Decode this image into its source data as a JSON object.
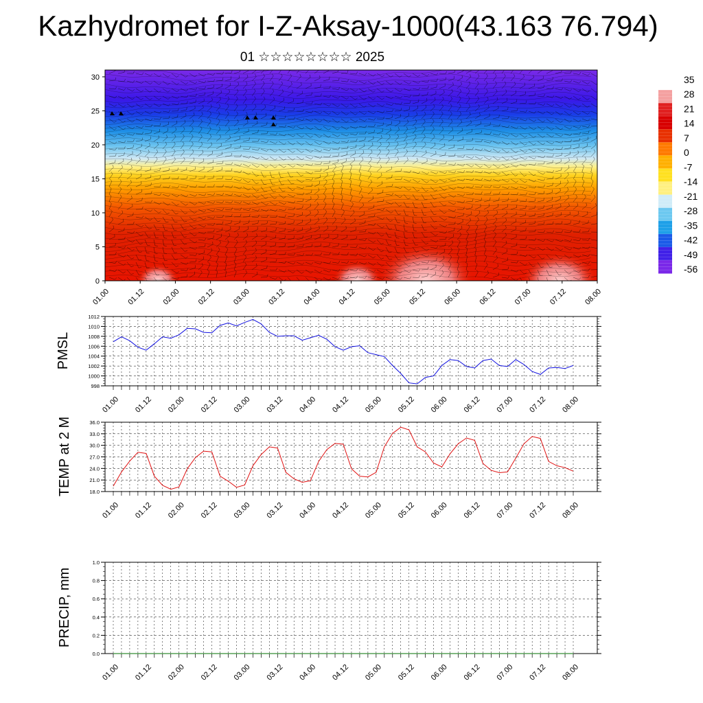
{
  "header": {
    "title": "Kazhydromet for I-Z-Aksay-1000(43.163 76.794)",
    "subtitle": "01 ☆☆☆☆☆☆☆☆ 2025"
  },
  "time_ticks": [
    "01.00",
    "01.12",
    "02.00",
    "02.12",
    "03.00",
    "03.12",
    "04.00",
    "04.12",
    "05.00",
    "05.12",
    "06.00",
    "06.12",
    "07.00",
    "07.12",
    "08.00"
  ],
  "chart_data": [
    {
      "type": "heatmap",
      "name": "cross-section",
      "y_ticks": [
        "0",
        "5",
        "10",
        "15",
        "20",
        "25",
        "30"
      ],
      "ylim": [
        0,
        31
      ],
      "colorbar": {
        "labels": [
          "35",
          "28",
          "21",
          "14",
          "7",
          "0",
          "-7",
          "-14",
          "-21",
          "-28",
          "-35",
          "-42",
          "-49",
          "-56"
        ],
        "colors": [
          "#ffffff",
          "#f4a0a0",
          "#e02020",
          "#d80000",
          "#e83000",
          "#ff7a00",
          "#ffb000",
          "#ffe020",
          "#fff080",
          "#d0ecf8",
          "#6cc8f0",
          "#1ea0e8",
          "#1a5ae8",
          "#4020e8",
          "#7a28e8"
        ]
      }
    },
    {
      "type": "line",
      "ylabel": "PMSL",
      "y_ticks": [
        "998",
        "1000",
        "1002",
        "1004",
        "1006",
        "1008",
        "1010",
        "1012"
      ],
      "ylim": [
        998,
        1012
      ],
      "color": "#1010e0",
      "values": [
        1006.9,
        1007.9,
        1007.1,
        1005.8,
        1005.2,
        1006.5,
        1007.9,
        1007.6,
        1008.3,
        1009.6,
        1009.5,
        1008.8,
        1008.7,
        1010.2,
        1010.7,
        1010.1,
        1010.8,
        1011.4,
        1010.5,
        1008.8,
        1008.0,
        1008.1,
        1008.1,
        1007.2,
        1007.7,
        1008.2,
        1007.4,
        1005.9,
        1005.2,
        1005.9,
        1006.1,
        1004.7,
        1004.3,
        1003.9,
        1002.1,
        1000.5,
        998.6,
        998.4,
        999.7,
        1000.0,
        1002.1,
        1003.3,
        1003.1,
        1001.9,
        1001.6,
        1003.1,
        1003.4,
        1002.1,
        1001.9,
        1003.3,
        1002.3,
        1000.9,
        1000.3,
        1001.6,
        1001.7,
        1001.5,
        1002.1
      ]
    },
    {
      "type": "line",
      "ylabel": "TEMP at 2 M",
      "y_ticks": [
        "18.0",
        "21.0",
        "24.0",
        "27.0",
        "30.0",
        "33.0",
        "36.0"
      ],
      "ylim": [
        18,
        36
      ],
      "color": "#e01010",
      "values": [
        19.4,
        23.1,
        25.9,
        28.2,
        27.9,
        22.0,
        19.6,
        18.6,
        19.2,
        23.9,
        26.8,
        28.5,
        28.3,
        22.0,
        20.7,
        19.1,
        19.7,
        24.7,
        27.6,
        29.6,
        29.3,
        23.0,
        21.3,
        20.4,
        20.8,
        25.8,
        28.9,
        30.5,
        30.3,
        23.9,
        22.0,
        21.8,
        23.0,
        29.6,
        33.1,
        34.7,
        34.0,
        29.6,
        28.3,
        25.4,
        24.4,
        27.8,
        30.4,
        31.9,
        31.3,
        25.3,
        23.5,
        22.9,
        23.1,
        26.7,
        30.4,
        32.3,
        31.8,
        25.8,
        24.7,
        24.2,
        23.3
      ]
    },
    {
      "type": "line",
      "ylabel": "PRECIP, mm",
      "y_ticks": [
        "0.0",
        "0.2",
        "0.4",
        "0.6",
        "0.8",
        "1.0"
      ],
      "ylim": [
        0,
        1
      ],
      "color": "#007000",
      "values": [
        0,
        0,
        0,
        0,
        0,
        0,
        0,
        0,
        0,
        0,
        0,
        0,
        0,
        0,
        0,
        0,
        0,
        0,
        0,
        0,
        0,
        0,
        0,
        0,
        0,
        0,
        0,
        0,
        0,
        0,
        0,
        0,
        0,
        0,
        0,
        0,
        0,
        0,
        0,
        0,
        0,
        0,
        0,
        0,
        0,
        0,
        0,
        0,
        0,
        0,
        0,
        0,
        0,
        0,
        0,
        0,
        0
      ]
    }
  ]
}
